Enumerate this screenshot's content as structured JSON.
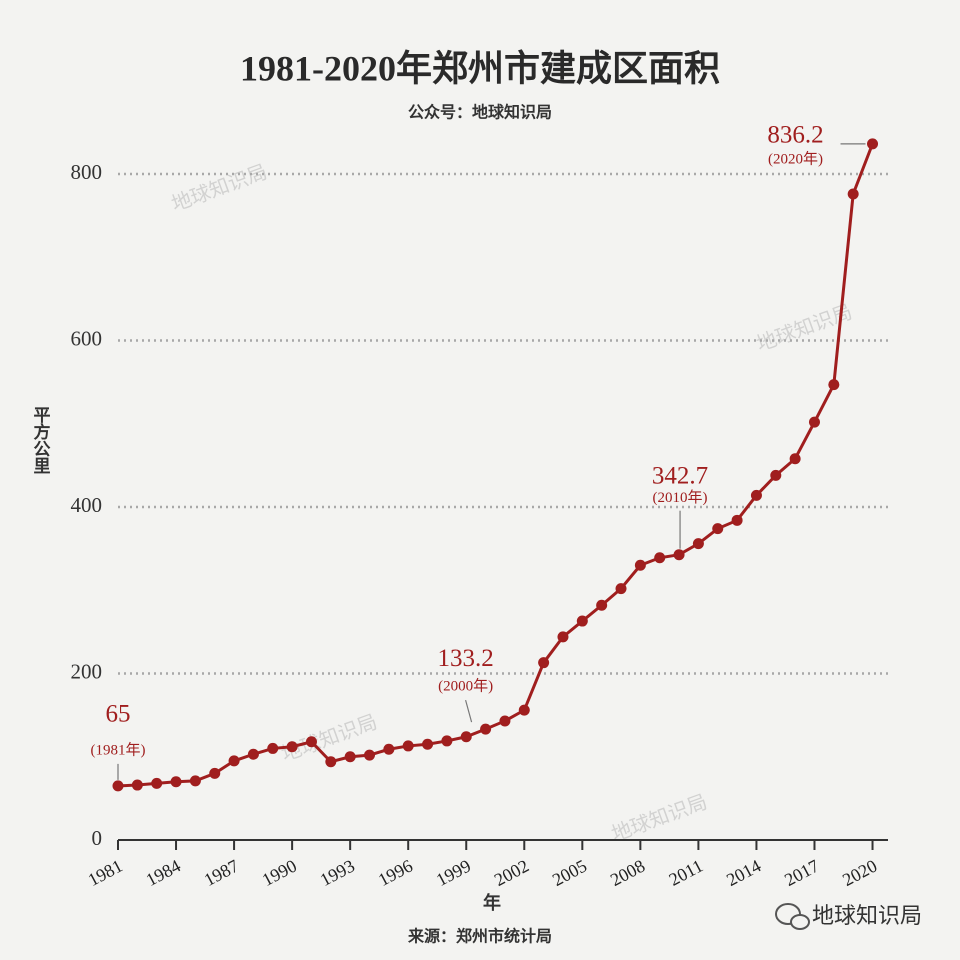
{
  "chart_data": {
    "type": "line",
    "title": "1981-2020年郑州市建成区面积",
    "subtitle": "公众号：地球知识局",
    "y_label": "平方公里",
    "x_label": "年",
    "source": "来源：郑州市统计局",
    "watermark": "地球知识局",
    "brand": "地球知识局",
    "x": [
      1981,
      1982,
      1983,
      1984,
      1985,
      1986,
      1987,
      1988,
      1989,
      1990,
      1991,
      1992,
      1993,
      1994,
      1995,
      1996,
      1997,
      1998,
      1999,
      2000,
      2001,
      2002,
      2003,
      2004,
      2005,
      2006,
      2007,
      2008,
      2009,
      2010,
      2011,
      2012,
      2013,
      2014,
      2015,
      2016,
      2017,
      2018,
      2019,
      2020
    ],
    "series": [
      {
        "name": "建成区面积",
        "color": "#a01e1e",
        "values": [
          65,
          66,
          68,
          70,
          71,
          80,
          95,
          103,
          110,
          112,
          118,
          94,
          100,
          102,
          109,
          113,
          115,
          119,
          124,
          133.2,
          143,
          156,
          213,
          244,
          263,
          282,
          302,
          330,
          339,
          342.7,
          356,
          374,
          384,
          414,
          438,
          458,
          502,
          547,
          776,
          836.2
        ]
      }
    ],
    "annotations": [
      {
        "x": 1981,
        "label": "(1981年)"
      },
      {
        "x": 2000,
        "label": "(2000年)"
      },
      {
        "x": 2010,
        "label": "(2010年)"
      },
      {
        "x": 2020,
        "label": "(2020年)"
      }
    ],
    "xlim": [
      1981,
      2020.8
    ],
    "xticks": [
      1981,
      1984,
      1987,
      1990,
      1993,
      1996,
      1999,
      2002,
      2005,
      2008,
      2011,
      2014,
      2017,
      2020
    ],
    "ylim": [
      0,
      800
    ],
    "yticks": [
      0,
      200,
      400,
      600,
      800
    ],
    "grid": true
  }
}
